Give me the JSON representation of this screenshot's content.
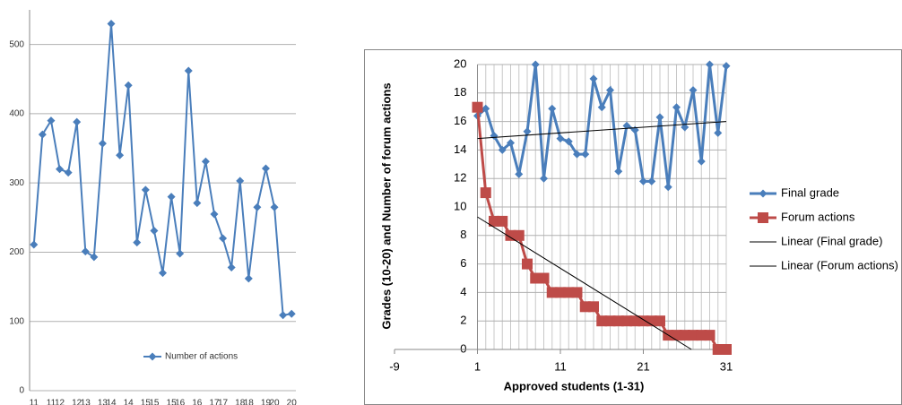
{
  "chart_data": [
    {
      "type": "line",
      "categories": [
        "11",
        null,
        "11",
        "12",
        null,
        "12",
        "13",
        null,
        "13",
        "14",
        null,
        "14",
        null,
        "15",
        "15",
        null,
        "15",
        "16",
        null,
        "16",
        null,
        "17",
        "17",
        null,
        "18",
        "18",
        null,
        "19",
        "20",
        null,
        "20"
      ],
      "series": [
        {
          "name": "Number of actions",
          "color": "#4a7ebb",
          "marker": "diamond",
          "values": [
            211,
            370,
            390,
            320,
            315,
            388,
            201,
            193,
            357,
            530,
            340,
            441,
            214,
            290,
            231,
            170,
            280,
            198,
            462,
            271,
            331,
            255,
            220,
            178,
            303,
            162,
            265,
            321,
            265,
            109,
            111
          ]
        }
      ],
      "ylim": [
        0,
        550
      ],
      "yticks": [
        0,
        100,
        200,
        300,
        400,
        500
      ],
      "grid": true,
      "legend": "bottom"
    },
    {
      "type": "line",
      "xlabel": "Approved students (1-31)",
      "ylabel": "Grades (10-20) and Number of forum actions",
      "xlim": [
        -9,
        31
      ],
      "xticks": [
        -9,
        1,
        11,
        21,
        31
      ],
      "x_minor_step": 1,
      "y_axis_at": 1,
      "ylim": [
        0,
        20
      ],
      "yticks": [
        0,
        2,
        4,
        6,
        8,
        10,
        12,
        14,
        16,
        18,
        20
      ],
      "grid": true,
      "legend": "right",
      "series": [
        {
          "name": "Final grade",
          "color": "#4a7ebb",
          "marker": "diamond",
          "x": [
            1,
            2,
            3,
            4,
            5,
            6,
            7,
            8,
            9,
            10,
            11,
            12,
            13,
            14,
            15,
            16,
            17,
            18,
            19,
            20,
            21,
            22,
            23,
            24,
            25,
            26,
            27,
            28,
            29,
            30,
            31
          ],
          "values": [
            16.4,
            16.9,
            15,
            14,
            14.5,
            12.3,
            15.3,
            20,
            12,
            16.9,
            14.8,
            14.6,
            13.7,
            13.7,
            19,
            17,
            18.2,
            12.5,
            15.7,
            15.4,
            11.8,
            11.8,
            16.3,
            11.4,
            17,
            15.6,
            18.2,
            13.2,
            20,
            15.2,
            19.9
          ]
        },
        {
          "name": "Forum actions",
          "color": "#be4b48",
          "marker": "square",
          "x": [
            1,
            2,
            3,
            4,
            5,
            6,
            7,
            8,
            9,
            10,
            11,
            12,
            13,
            14,
            15,
            16,
            17,
            18,
            19,
            20,
            21,
            22,
            23,
            24,
            25,
            26,
            27,
            28,
            29,
            30,
            31
          ],
          "values": [
            17,
            11,
            9,
            9,
            8,
            8,
            6,
            5,
            5,
            4,
            4,
            4,
            4,
            3,
            3,
            2,
            2,
            2,
            2,
            2,
            2,
            2,
            2,
            1,
            1,
            1,
            1,
            1,
            1,
            0,
            0
          ]
        },
        {
          "name": "Linear (Final grade)",
          "color": "#000000",
          "x": [
            1,
            31
          ],
          "values": [
            14.8,
            16
          ]
        },
        {
          "name": "Linear (Forum actions)",
          "color": "#000000",
          "x": [
            1,
            26.8
          ],
          "values": [
            9.3,
            0
          ]
        }
      ]
    }
  ]
}
